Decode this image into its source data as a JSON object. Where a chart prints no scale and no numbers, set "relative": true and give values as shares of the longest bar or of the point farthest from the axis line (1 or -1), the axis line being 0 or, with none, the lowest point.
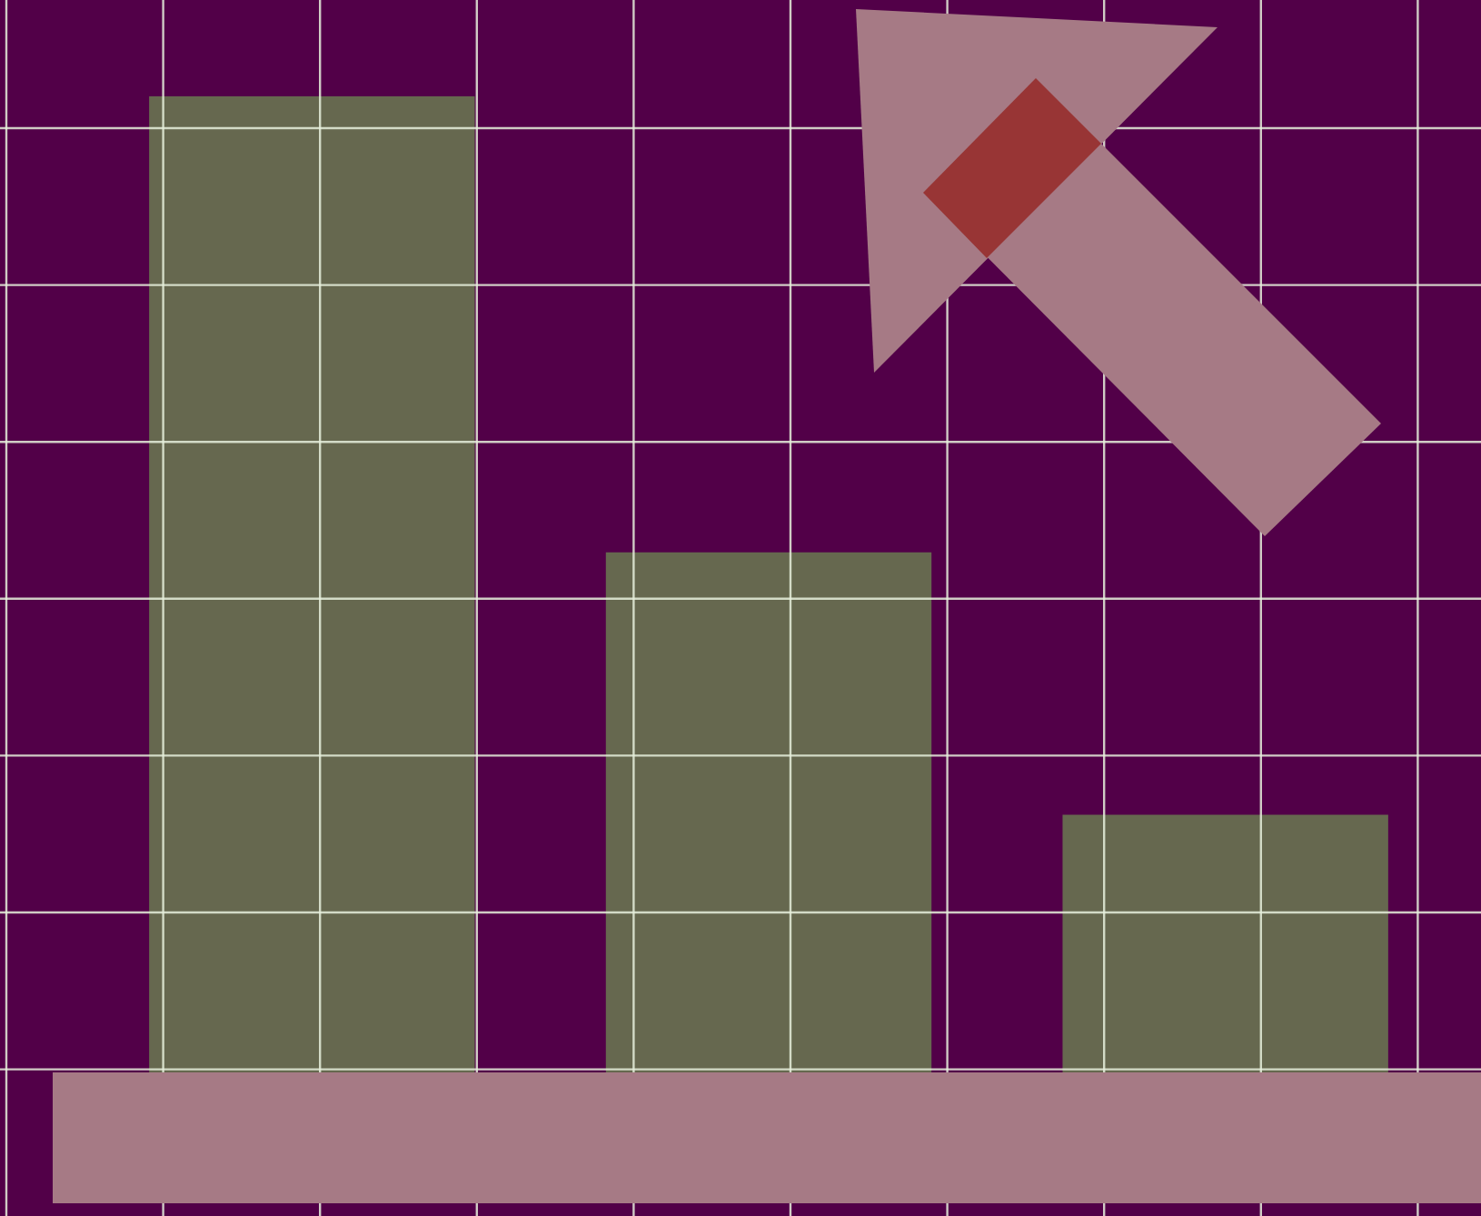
{
  "chart_data": {
    "type": "bar",
    "relative": true,
    "categories": [
      null,
      null,
      null
    ],
    "values": [
      1,
      0.588,
      0.351
    ],
    "color": "#66684f",
    "grid": true
  }
}
